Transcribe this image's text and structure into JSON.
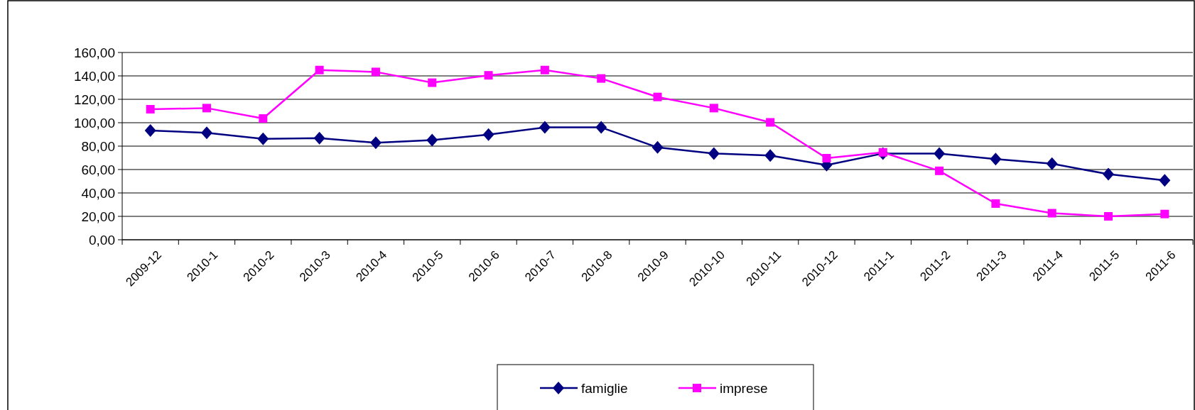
{
  "chart_data": {
    "type": "line",
    "categories": [
      "2009-12",
      "2010-1",
      "2010-2",
      "2010-3",
      "2010-4",
      "2010-5",
      "2010-6",
      "2010-7",
      "2010-8",
      "2010-9",
      "2010-10",
      "2010-11",
      "2010-12",
      "2011-1",
      "2011-2",
      "2011-3",
      "2011-4",
      "2011-5",
      "2011-6"
    ],
    "series": [
      {
        "name": "famiglie",
        "color": "#000080",
        "marker": "diamond",
        "values": [
          93.4,
          91.4,
          86.2,
          86.8,
          82.9,
          85.2,
          89.8,
          96,
          96,
          78.9,
          73.7,
          72,
          63.8,
          73.7,
          73.7,
          69,
          65,
          56,
          50.7
        ]
      },
      {
        "name": "imprese",
        "color": "#ff00ff",
        "marker": "square",
        "values": [
          111.5,
          112.5,
          103.6,
          145,
          143.4,
          134.2,
          140.5,
          145,
          137.8,
          122,
          112.5,
          100.3,
          69.7,
          74.7,
          58.9,
          30.9,
          22.7,
          20,
          22
        ]
      }
    ],
    "ylim": [
      0,
      160
    ],
    "yticks": [
      {
        "value": 0,
        "label": "0,00"
      },
      {
        "value": 20,
        "label": "20,00"
      },
      {
        "value": 40,
        "label": "40,00"
      },
      {
        "value": 60,
        "label": "60,00"
      },
      {
        "value": 80,
        "label": "80,00"
      },
      {
        "value": 100,
        "label": "100,00"
      },
      {
        "value": 120,
        "label": "120,00"
      },
      {
        "value": 140,
        "label": "140,00"
      },
      {
        "value": 160,
        "label": "160,00"
      }
    ],
    "grid": "y",
    "legend": "bottom"
  }
}
